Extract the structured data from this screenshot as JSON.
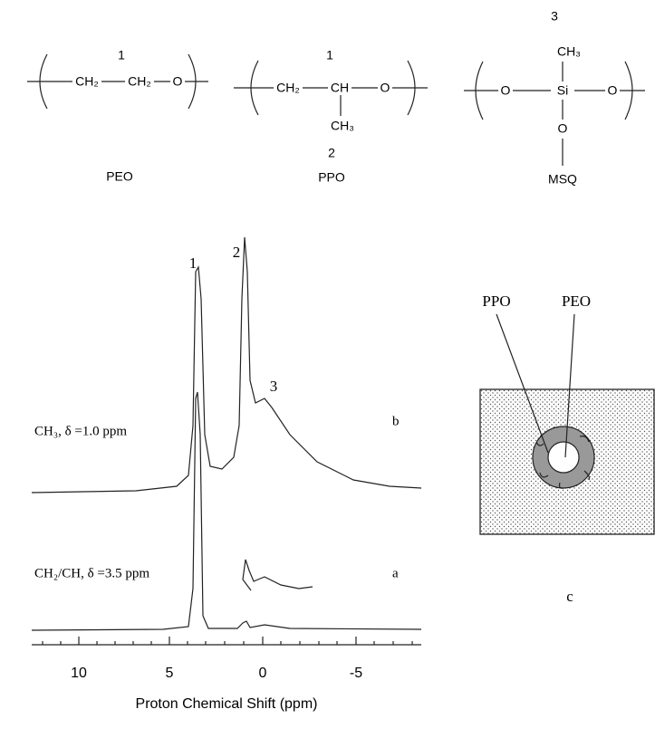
{
  "structures": [
    {
      "label": "PEO",
      "numbers": [
        "1"
      ],
      "groups": [
        "CH₂",
        "CH₂",
        "O"
      ]
    },
    {
      "label": "PPO",
      "numbers": [
        "1",
        "2"
      ],
      "groups": [
        "CH₂",
        "CH",
        "O",
        "CH₃"
      ]
    },
    {
      "label": "MSQ",
      "numbers": [
        "3"
      ],
      "groups": [
        "O",
        "Si",
        "O",
        "CH₃",
        "O"
      ]
    }
  ],
  "spectra": {
    "peak_labels": [
      "1",
      "2",
      "3"
    ],
    "traces": [
      {
        "label": "CH₃, δ =1.0 ppm",
        "letter": "b"
      },
      {
        "label": "CH₂/CH, δ =3.5 ppm",
        "letter": "a"
      }
    ],
    "axis": {
      "ticks": [
        "10",
        "5",
        "0",
        "-5"
      ],
      "label": "Proton Chemical Shift (ppm)"
    }
  },
  "schematic": {
    "labels": [
      "PPO",
      "PEO"
    ],
    "letter": "c"
  }
}
